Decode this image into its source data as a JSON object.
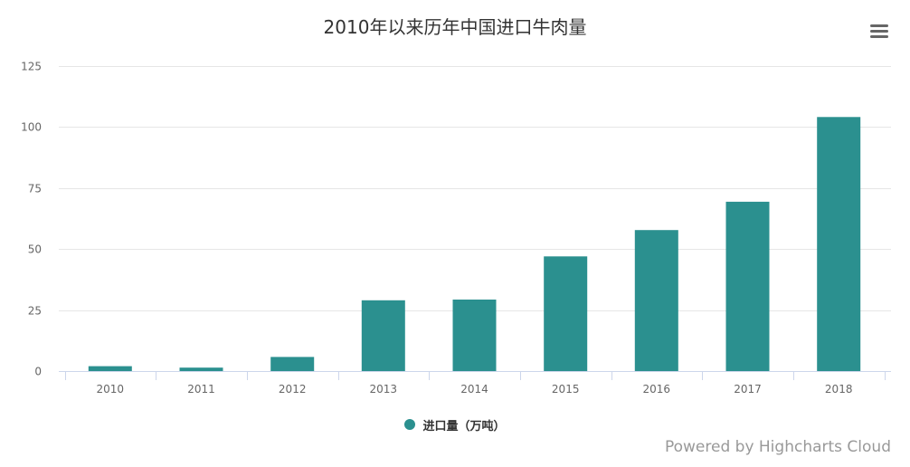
{
  "chart_data": {
    "type": "bar",
    "title": "2010年以来历年中国进口牛肉量",
    "categories": [
      "2010",
      "2011",
      "2012",
      "2013",
      "2014",
      "2015",
      "2016",
      "2017",
      "2018"
    ],
    "series": [
      {
        "name": "进口量（万吨）",
        "values": [
          2.0,
          1.4,
          5.8,
          29.0,
          29.3,
          47.0,
          57.8,
          69.4,
          104.1
        ]
      }
    ],
    "ylim": [
      0,
      125
    ],
    "yticks": [
      0,
      25,
      50,
      75,
      100,
      125
    ],
    "grid": true,
    "legend": "bottom-center"
  },
  "colors": {
    "bar": "#2b908f",
    "title": "#333333",
    "axis_label": "#666666",
    "gridline": "#e6e6e6",
    "credits": "#999999"
  },
  "menu": {
    "icon": "hamburger-menu-icon"
  },
  "credits": {
    "text": "Powered by Highcharts Cloud"
  }
}
